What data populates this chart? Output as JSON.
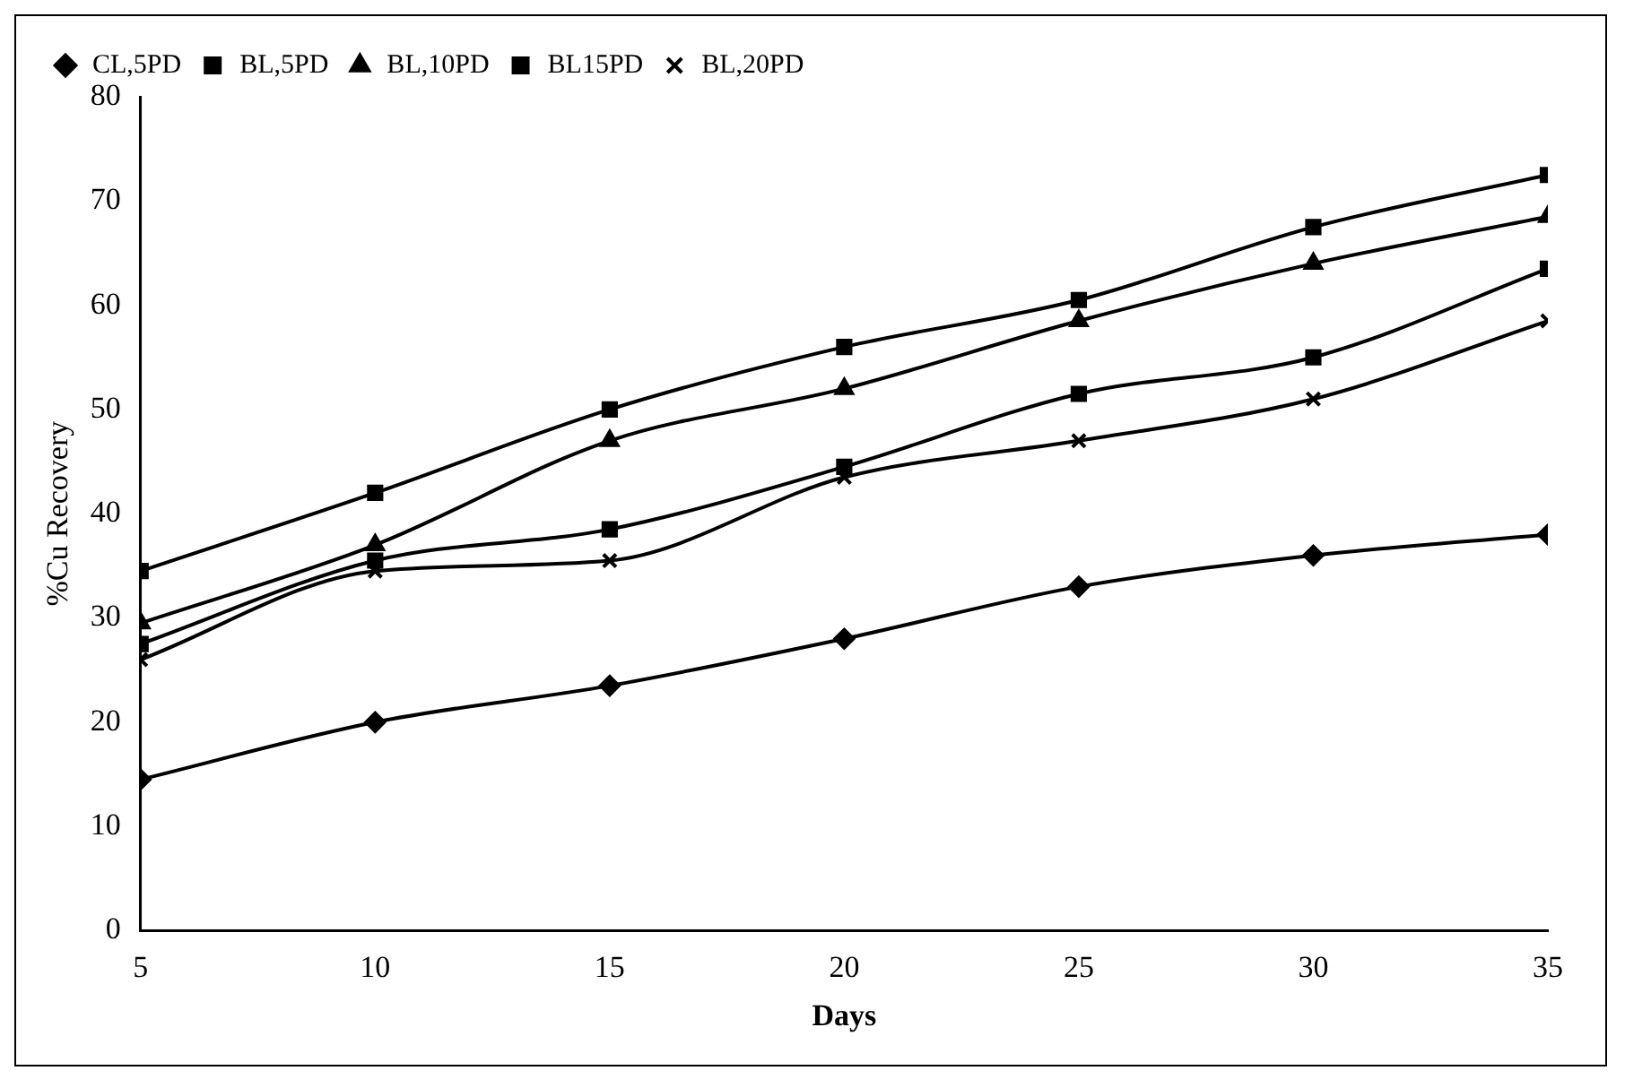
{
  "chart_data": {
    "type": "line",
    "xlabel": "Days",
    "ylabel": "%Cu Recovery",
    "x": [
      5,
      10,
      15,
      20,
      25,
      30,
      35
    ],
    "series": [
      {
        "name": "CL,5PD",
        "color": "#000000",
        "marker": "diamond",
        "values": [
          14.5,
          20,
          23.5,
          28,
          33,
          36,
          38
        ]
      },
      {
        "name": "BL,5PD",
        "color": "#000000",
        "marker": "square",
        "values": [
          34.5,
          42,
          50,
          56,
          60.5,
          67.5,
          72.5
        ]
      },
      {
        "name": "BL,10PD",
        "color": "#000000",
        "marker": "triangle",
        "values": [
          29.5,
          37,
          47,
          52,
          58.5,
          64,
          68.5
        ]
      },
      {
        "name": "BL15PD",
        "color": "#000000",
        "marker": "square",
        "values": [
          27.5,
          35.5,
          38.5,
          44.5,
          51.5,
          55,
          63.5
        ]
      },
      {
        "name": "BL,20PD",
        "color": "#000000",
        "marker": "cross",
        "values": [
          26,
          34.5,
          35.5,
          43.5,
          47,
          51,
          58.5
        ]
      }
    ],
    "xlim": [
      5,
      35
    ],
    "xticks": [
      5,
      10,
      15,
      20,
      25,
      30,
      35
    ],
    "ylim": [
      0,
      80
    ],
    "yticks": [
      0,
      10,
      20,
      30,
      40,
      50,
      60,
      70,
      80
    ],
    "grid": false,
    "legend": "top left",
    "line_style": "solid"
  }
}
